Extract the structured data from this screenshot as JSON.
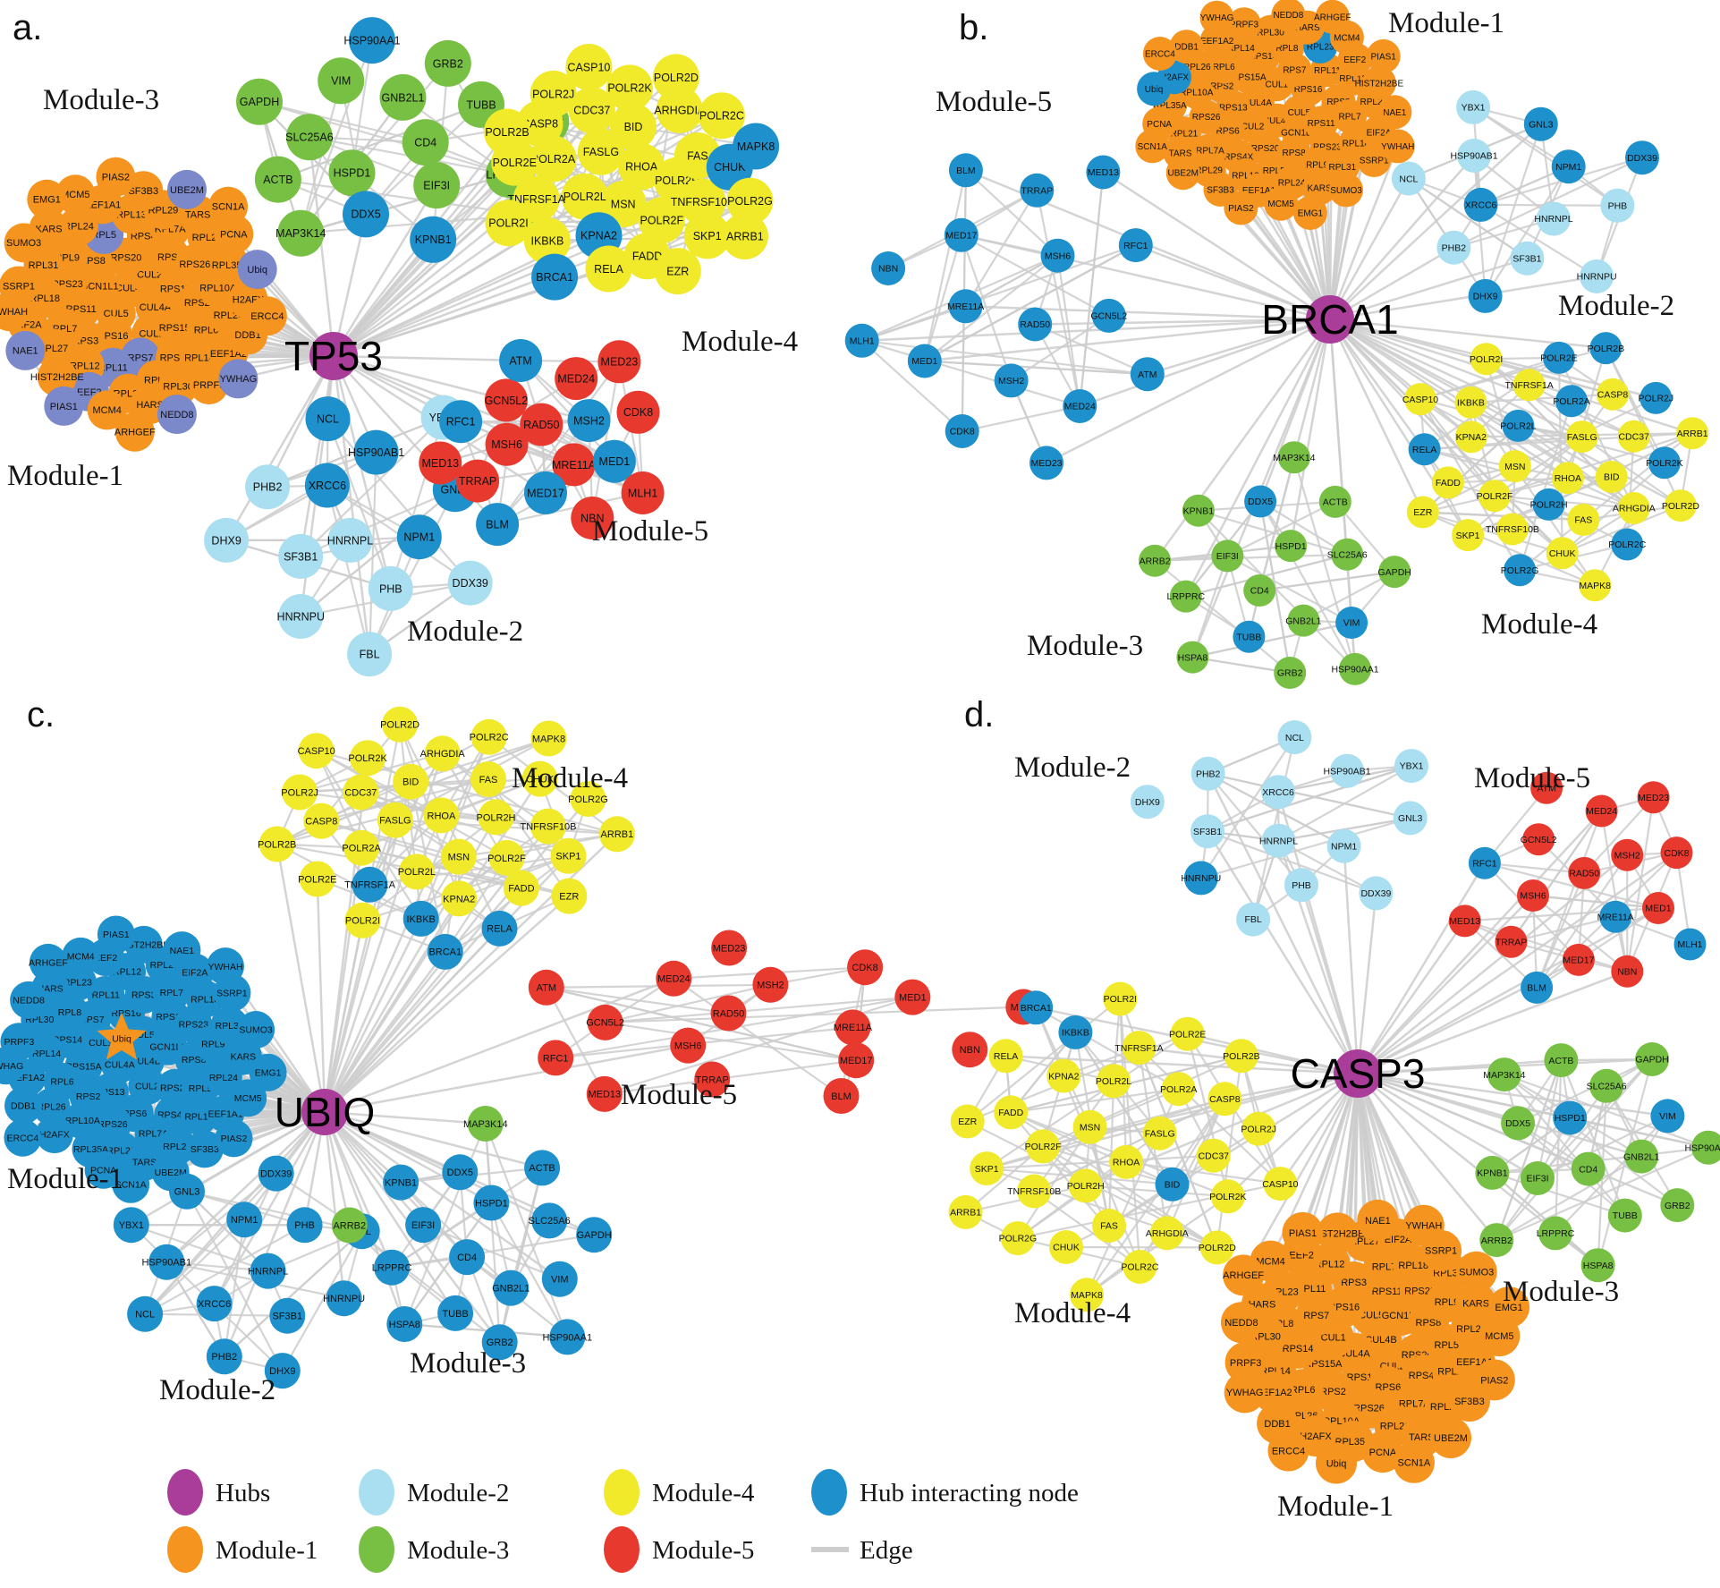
{
  "colors": {
    "hubs": "#AA3D99",
    "m1": "#F5941E",
    "m2": "#A9DFF0",
    "m3": "#77C044",
    "m4": "#F1EA2B",
    "m5": "#E8392F",
    "hi": "#1E90CB",
    "alt": "#7B88CA",
    "edge": "#CDCDCD"
  },
  "gene_sets": {
    "module1": [
      "CUL4B",
      "CUL4A",
      "CUL5",
      "CUL2",
      "CUL1",
      "GCN1L1",
      "RPS13",
      "RPS16",
      "RPS20",
      "RPS15A",
      "RPS11",
      "RPS6",
      "RPS7",
      "RPS8",
      "RPS2",
      "RPS3",
      "RPS4X",
      "RPS14",
      "RPS23",
      "RPS26",
      "RPL11",
      "RPL5",
      "RPL6",
      "RPL7",
      "RPL7A",
      "RPL8",
      "RPL9",
      "RPL10A",
      "RPL12",
      "RPL13",
      "RPL14",
      "RPL18",
      "RPL21",
      "RPL23",
      "RPL24",
      "RPL26",
      "RPL27",
      "RPL29",
      "RPL30",
      "RPL31",
      "RPL35A",
      "EEF2",
      "EEF1A1",
      "EEF1A2",
      "EIF2A",
      "TARS",
      "HARS",
      "KARS",
      "H2AFX",
      "HIST2H2BE",
      "SF3B3",
      "PRPF3",
      "SSRP1",
      "PCNA",
      "MCM4",
      "MCM5",
      "DDB1",
      "NAE1",
      "UBE2M",
      "NEDD8",
      "SUMO3",
      "Ubiq",
      "PIAS1",
      "PIAS2",
      "YWHAG",
      "YWHAH",
      "SCN1A",
      "ARHGEF",
      "EMG1",
      "ERCC4"
    ],
    "module2": [
      "HNRNPL",
      "XRCC6",
      "NPM1",
      "SF3B1",
      "HSP90AB1",
      "PHB",
      "PHB2",
      "GNL3",
      "HNRNPU",
      "NCL",
      "DDX39",
      "DHX9",
      "YBX1",
      "FBL"
    ],
    "module3": [
      "CD4",
      "HSPD1",
      "GNB2L1",
      "EIF3I",
      "SLC25A6",
      "TUBB",
      "DDX5",
      "VIM",
      "LRPPRC",
      "ACTB",
      "GRB2",
      "KPNB1",
      "GAPDH",
      "HSPA8",
      "MAP3K14",
      "HSP90AA1",
      "ARRB2"
    ],
    "module4": [
      "RHOA",
      "MSN",
      "FASLG",
      "POLR2H",
      "POLR2L",
      "BID",
      "POLR2F",
      "POLR2A",
      "FAS",
      "KPNA2",
      "CDC37",
      "TNFRSF10B",
      "TNFRSF1A",
      "ARHGDIA",
      "FADD",
      "CASP8",
      "CHUK",
      "IKBKB",
      "POLR2K",
      "SKP1",
      "POLR2E",
      "POLR2C",
      "RELA",
      "POLR2J",
      "POLR2G",
      "POLR2I",
      "POLR2D",
      "EZR",
      "POLR2B",
      "MAPK8",
      "BRCA1",
      "CASP10",
      "ARRB1"
    ],
    "module5": [
      "RAD50",
      "MRE11A",
      "MSH6",
      "MSH2",
      "MED17",
      "GCN5L2",
      "MED1",
      "TRRAP",
      "MED24",
      "NBN",
      "RFC1",
      "CDK8",
      "BLM",
      "ATM",
      "MLH1",
      "MED13",
      "MED23"
    ]
  },
  "panels": [
    {
      "id": "a",
      "letter": "a.",
      "hub_label": "TP53",
      "modules": [
        {
          "key": "m1",
          "name": "Module-1",
          "genes": "module1",
          "overrides": {
            "alt": [
              "RPL11",
              "RPL5",
              "EEF2",
              "RPS7",
              "NAE1",
              "Ubiq",
              "UBE2M",
              "NEDD8",
              "PIAS1",
              "YWHAG"
            ]
          }
        },
        {
          "key": "m2",
          "name": "Module-2",
          "genes": "module2",
          "overrides": {
            "hi": [
              "XRCC6",
              "NPM1",
              "HSP90AB1",
              "GNL3",
              "NCL"
            ]
          }
        },
        {
          "key": "m3",
          "name": "Module-3",
          "genes": "module3",
          "overrides": {
            "hi": [
              "DDX5",
              "KPNB1",
              "HSP90AA1"
            ]
          }
        },
        {
          "key": "m4",
          "name": "Module-4",
          "genes": "module4",
          "overrides": {
            "hi": [
              "KPNA2",
              "CHUK",
              "MAPK8",
              "BRCA1"
            ]
          }
        },
        {
          "key": "m5",
          "name": "Module-5",
          "genes": "module5",
          "overrides": {
            "hi": [
              "MSH2",
              "MED17",
              "MED1",
              "RFC1",
              "BLM",
              "ATM"
            ]
          }
        }
      ]
    },
    {
      "id": "b",
      "letter": "b.",
      "hub_label": "BRCA1",
      "modules": [
        {
          "key": "m1",
          "name": "Module-1",
          "genes": "module1",
          "overrides": {
            "hi": [
              "H2AFX",
              "Ubiq",
              "RPL23"
            ]
          }
        },
        {
          "key": "m2",
          "name": "Module-2",
          "genes": "module2",
          "exclude": [
            "FBL"
          ],
          "overrides": {
            "hi": [
              "GNL3",
              "NPM1",
              "XRCC6",
              "DHX9",
              "DDX39"
            ]
          }
        },
        {
          "key": "m3",
          "name": "Module-3",
          "genes": "module3",
          "overrides": {
            "hi": [
              "TUBB",
              "VIM",
              "DDX5"
            ]
          }
        },
        {
          "key": "m4",
          "name": "Module-4",
          "genes": "module4",
          "exclude": [
            "BRCA1"
          ],
          "overrides": {
            "hi": [
              "POLR2A",
              "POLR2B",
              "POLR2C",
              "POLR2K",
              "POLR2L",
              "POLR2H",
              "POLR2E",
              "POLR2G",
              "POLR2J",
              "RELA"
            ]
          }
        },
        {
          "key": "m5",
          "name": "Module-5",
          "genes": "module5",
          "default_color": "hi"
        }
      ]
    },
    {
      "id": "c",
      "letter": "c.",
      "hub_label": "UBIQ",
      "modules": [
        {
          "key": "m4",
          "name": "Module-4",
          "genes": "module4",
          "overrides": {
            "hi": [
              "BRCA1",
              "IKBKB",
              "RELA",
              "TNFRSF1A"
            ]
          }
        },
        {
          "key": "m1",
          "name": "Module-1",
          "genes": "module1",
          "default_color": "hi",
          "star": [
            "Ubiq"
          ],
          "overrides": {
            "m1": [
              "Ubiq"
            ]
          }
        },
        {
          "key": "m5",
          "name": "Module-5",
          "genes": "module5"
        },
        {
          "key": "m2",
          "name": "Module-2",
          "genes": "module2",
          "default_color": "hi"
        },
        {
          "key": "m3",
          "name": "Module-3",
          "genes": "module3",
          "default_color": "hi",
          "overrides": {
            "m3": [
              "ARRB2",
              "MAP3K14"
            ]
          }
        }
      ]
    },
    {
      "id": "d",
      "letter": "d.",
      "hub_label": "CASP3",
      "modules": [
        {
          "key": "m2",
          "name": "Module-2",
          "genes": "module2",
          "overrides": {
            "hi": [
              "HNRNPU"
            ]
          }
        },
        {
          "key": "m5",
          "name": "Module-5",
          "genes": "module5",
          "overrides": {
            "hi": [
              "MRE11A",
              "MLH1",
              "RFC1",
              "BLM"
            ]
          }
        },
        {
          "key": "m4",
          "name": "Module-4",
          "genes": "module4",
          "overrides": {
            "hi": [
              "BRCA1",
              "IKBKB",
              "BID"
            ]
          }
        },
        {
          "key": "m3",
          "name": "Module-3",
          "genes": "module3",
          "overrides": {
            "hi": [
              "VIM",
              "HSPD1"
            ]
          }
        },
        {
          "key": "m1",
          "name": "Module-1",
          "genes": "module1"
        }
      ]
    }
  ],
  "legend": {
    "rows": [
      [
        {
          "label": "Hubs",
          "color": "hubs"
        },
        {
          "label": "Module-2",
          "color": "m2"
        },
        {
          "label": "Module-4",
          "color": "m4"
        },
        {
          "label": "Hub interacting node",
          "color": "hi"
        }
      ],
      [
        {
          "label": "Module-1",
          "color": "m1"
        },
        {
          "label": "Module-3",
          "color": "m3"
        },
        {
          "label": "Module-5",
          "color": "m5"
        },
        {
          "label": "Edge",
          "color": "edge",
          "shape": "line"
        }
      ]
    ]
  }
}
